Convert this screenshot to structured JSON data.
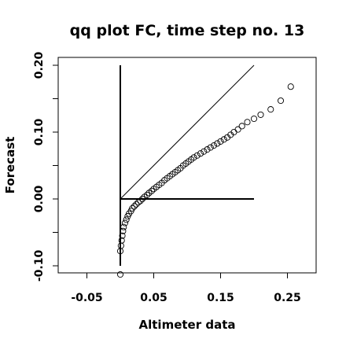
{
  "chart_data": {
    "type": "scatter",
    "title": "qq plot FC, time step no. 13",
    "xlabel": "Altimeter data",
    "ylabel": "Forecast",
    "xlim": [
      -0.1,
      0.3
    ],
    "ylim": [
      -0.11,
      0.21
    ],
    "xticks": [
      -0.05,
      0.05,
      0.15,
      0.25
    ],
    "xtick_labels": [
      "-0.05",
      "0.05",
      "0.15",
      "0.25"
    ],
    "yticks": [
      -0.1,
      0.0,
      0.1,
      0.2
    ],
    "ytick_labels": [
      "-0.10",
      "0.00",
      "0.10",
      "0.20"
    ],
    "grid": false,
    "legend": "none",
    "marker": "open-circle",
    "reference_lines": [
      {
        "type": "identity",
        "from": [
          0,
          0
        ],
        "to": [
          0.2,
          0.2
        ]
      },
      {
        "type": "vertical",
        "x": 0,
        "from_y": -0.1,
        "to_y": 0.2
      },
      {
        "type": "horizontal",
        "y": 0,
        "from_x": 0,
        "to_x": 0.2
      }
    ],
    "points": [
      [
        0.0,
        -0.113
      ],
      [
        0.0,
        -0.078
      ],
      [
        0.001,
        -0.07
      ],
      [
        0.002,
        -0.062
      ],
      [
        0.003,
        -0.055
      ],
      [
        0.004,
        -0.048
      ],
      [
        0.005,
        -0.042
      ],
      [
        0.007,
        -0.036
      ],
      [
        0.009,
        -0.031
      ],
      [
        0.011,
        -0.026
      ],
      [
        0.013,
        -0.022
      ],
      [
        0.016,
        -0.018
      ],
      [
        0.018,
        -0.014
      ],
      [
        0.021,
        -0.011
      ],
      [
        0.024,
        -0.008
      ],
      [
        0.027,
        -0.005
      ],
      [
        0.03,
        -0.003
      ],
      [
        0.033,
        0.0
      ],
      [
        0.036,
        0.003
      ],
      [
        0.04,
        0.006
      ],
      [
        0.043,
        0.009
      ],
      [
        0.047,
        0.012
      ],
      [
        0.05,
        0.015
      ],
      [
        0.054,
        0.018
      ],
      [
        0.058,
        0.021
      ],
      [
        0.062,
        0.024
      ],
      [
        0.066,
        0.028
      ],
      [
        0.07,
        0.031
      ],
      [
        0.074,
        0.034
      ],
      [
        0.078,
        0.037
      ],
      [
        0.082,
        0.04
      ],
      [
        0.086,
        0.043
      ],
      [
        0.09,
        0.046
      ],
      [
        0.094,
        0.05
      ],
      [
        0.098,
        0.053
      ],
      [
        0.102,
        0.056
      ],
      [
        0.106,
        0.059
      ],
      [
        0.11,
        0.062
      ],
      [
        0.115,
        0.065
      ],
      [
        0.12,
        0.068
      ],
      [
        0.125,
        0.071
      ],
      [
        0.13,
        0.074
      ],
      [
        0.135,
        0.077
      ],
      [
        0.14,
        0.08
      ],
      [
        0.145,
        0.083
      ],
      [
        0.15,
        0.086
      ],
      [
        0.155,
        0.089
      ],
      [
        0.16,
        0.092
      ],
      [
        0.165,
        0.096
      ],
      [
        0.17,
        0.1
      ],
      [
        0.176,
        0.104
      ],
      [
        0.182,
        0.109
      ],
      [
        0.19,
        0.115
      ],
      [
        0.2,
        0.12
      ],
      [
        0.21,
        0.126
      ],
      [
        0.225,
        0.134
      ],
      [
        0.24,
        0.147
      ],
      [
        0.255,
        0.168
      ]
    ]
  }
}
